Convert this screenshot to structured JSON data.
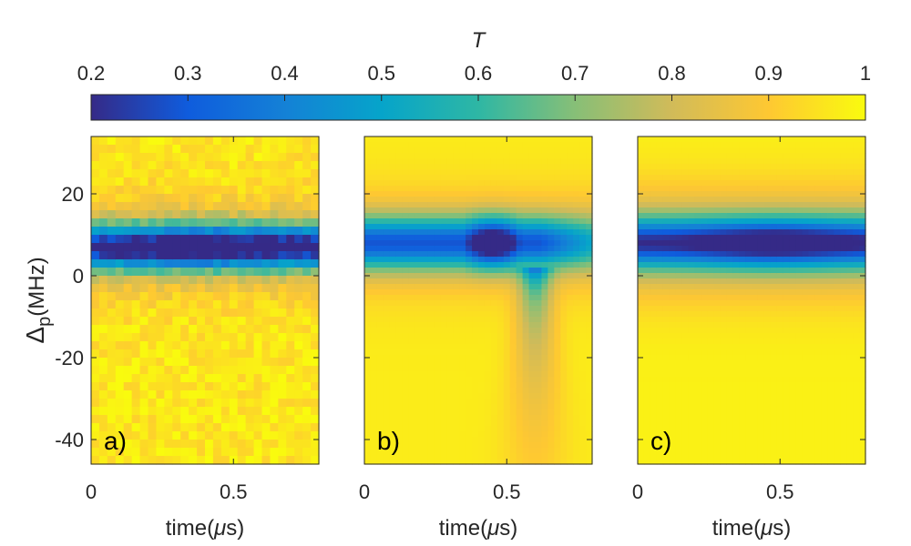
{
  "chart_data": {
    "type": "heatmap",
    "colorbar": {
      "title": "T",
      "ticks": [
        "0.2",
        "0.3",
        "0.4",
        "0.5",
        "0.6",
        "0.7",
        "0.8",
        "0.9",
        "1"
      ],
      "range": [
        0.2,
        1
      ],
      "colormap": "parula",
      "colormap_stops": [
        "#352a87",
        "#0f5cdd",
        "#1481d6",
        "#06a4ca",
        "#2eb7a4",
        "#87bf77",
        "#d1bb59",
        "#fec832",
        "#f9fb0e"
      ]
    },
    "x_axis": {
      "label_prefix": "time(",
      "label_symbol": "μ",
      "label_suffix": "s)",
      "ticks": [
        "0",
        "0.5"
      ],
      "range": [
        0,
        0.8
      ]
    },
    "y_axis": {
      "label_delta": "Δ",
      "label_sub": "p",
      "label_suffix": "(MHz)",
      "ticks": [
        "20",
        "0",
        "-20",
        "-40"
      ],
      "range": [
        -46,
        34
      ]
    },
    "panels": [
      {
        "label": "a)",
        "kind": "measured",
        "dip_center_mhz": 7,
        "dip_min_T": 0.24
      },
      {
        "label": "b)",
        "kind": "simulated",
        "dip_center_mhz": 8,
        "dip_min_T": 0.22
      },
      {
        "label": "c)",
        "kind": "simulated",
        "dip_center_mhz": 8,
        "dip_min_T": 0.26
      }
    ]
  }
}
